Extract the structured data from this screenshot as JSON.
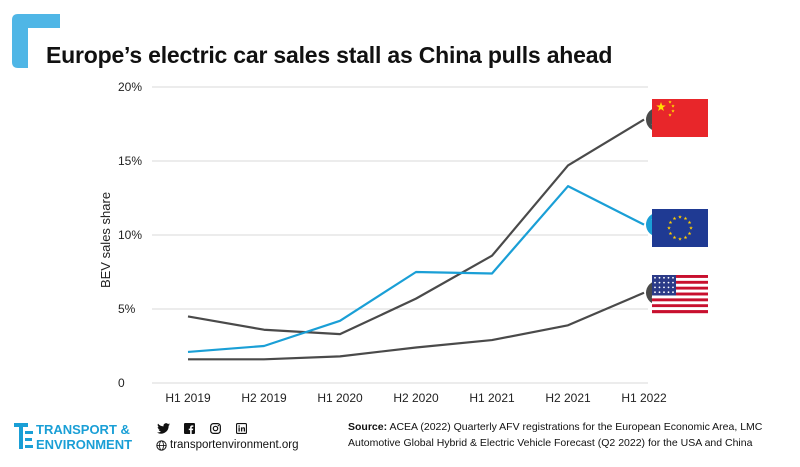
{
  "title": "Europe’s electric car sales stall as China pulls ahead",
  "chart_data": {
    "type": "line",
    "title": "Europe’s electric car sales stall as China pulls ahead",
    "xlabel": "",
    "ylabel": "BEV sales share",
    "categories": [
      "H1 2019",
      "H2 2019",
      "H1 2020",
      "H2 2020",
      "H1 2021",
      "H2 2021",
      "H1 2022"
    ],
    "y_ticks": [
      "0",
      "5%",
      "10%",
      "15%",
      "20%"
    ],
    "ylim": [
      0,
      20
    ],
    "grid": true,
    "series": [
      {
        "name": "China",
        "color": "#4a4a4a",
        "trend": "up",
        "values": [
          4.5,
          3.6,
          3.3,
          5.7,
          8.6,
          14.7,
          17.8
        ]
      },
      {
        "name": "Europe",
        "color": "#1a9fd6",
        "trend": "down",
        "values": [
          2.1,
          2.5,
          4.2,
          7.5,
          7.4,
          13.3,
          10.7
        ]
      },
      {
        "name": "USA",
        "color": "#4a4a4a",
        "trend": "up",
        "values": [
          1.6,
          1.6,
          1.8,
          2.4,
          2.9,
          3.9,
          6.1
        ]
      }
    ]
  },
  "footer": {
    "logo_line1": "TRANSPORT &",
    "logo_line2": "ENVIRONMENT",
    "website": "transportenvironment.org",
    "social_icons": [
      "twitter-icon",
      "facebook-icon",
      "instagram-icon",
      "linkedin-icon"
    ],
    "source_label": "Source:",
    "source_text": "ACEA (2022) Quarterly AFV registrations for the European Economic Area, LMC Automotive Global Hybrid & Electric Vehicle Forecast (Q2 2022) for the USA and China"
  },
  "colors": {
    "brand": "#1a9fd6",
    "dark_line": "#4a4a4a",
    "grid": "#d9d9d9"
  }
}
